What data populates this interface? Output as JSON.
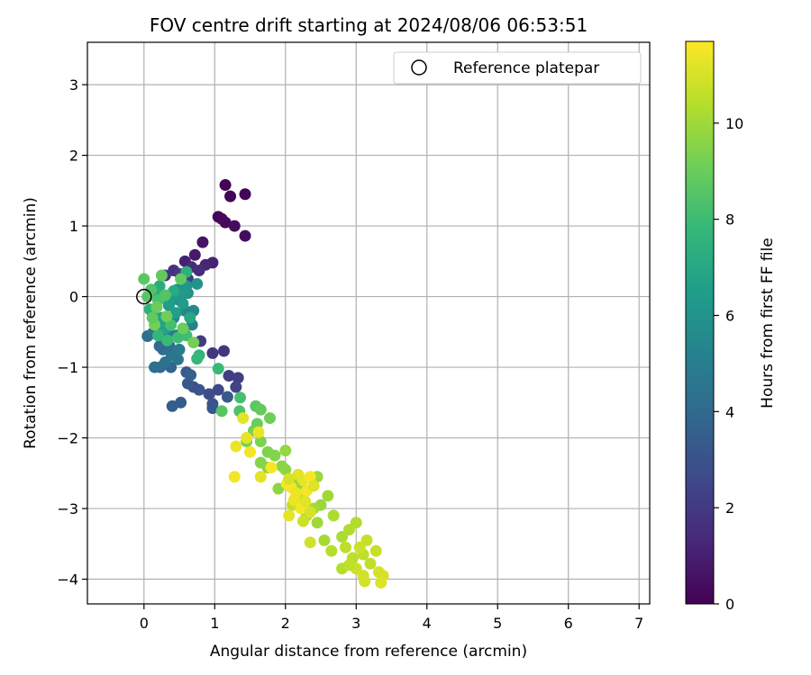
{
  "chart_data": {
    "type": "scatter",
    "title": "FOV centre drift starting at 2024/08/06 06:53:51",
    "xlabel": "Angular distance from reference (arcmin)",
    "ylabel": "Rotation from reference (arcmin)",
    "xlim": [
      -0.8,
      7.15
    ],
    "ylim": [
      -4.35,
      3.6
    ],
    "xticks": [
      0,
      1,
      2,
      3,
      4,
      5,
      6,
      7
    ],
    "yticks": [
      -4,
      -3,
      -2,
      -1,
      0,
      1,
      2,
      3
    ],
    "grid": true,
    "legend": {
      "entries": [
        "Reference platepar"
      ],
      "placement": "top-right",
      "marker": "hollow-circle"
    },
    "reference_point": {
      "x": 0,
      "y": 0
    },
    "colorbar": {
      "label": "Hours from first FF file",
      "range": [
        0,
        11.7
      ],
      "ticks": [
        0,
        2,
        4,
        6,
        8,
        10
      ],
      "colormap": "viridis",
      "colormap_stops": [
        "#440154",
        "#482878",
        "#3e4989",
        "#31688e",
        "#26828e",
        "#1f9e89",
        "#35b779",
        "#6ece58",
        "#b5de2b",
        "#fde725"
      ]
    },
    "points": [
      {
        "x": 1.15,
        "y": 1.58,
        "c": 0.05
      },
      {
        "x": 1.43,
        "y": 1.45,
        "c": 0.1
      },
      {
        "x": 1.22,
        "y": 1.42,
        "c": 0.15
      },
      {
        "x": 1.05,
        "y": 1.13,
        "c": 0.2
      },
      {
        "x": 1.1,
        "y": 1.1,
        "c": 0.25
      },
      {
        "x": 1.15,
        "y": 1.05,
        "c": 0.3
      },
      {
        "x": 1.28,
        "y": 1.0,
        "c": 0.35
      },
      {
        "x": 1.43,
        "y": 0.86,
        "c": 0.4
      },
      {
        "x": 0.83,
        "y": 0.77,
        "c": 0.6
      },
      {
        "x": 0.72,
        "y": 0.59,
        "c": 0.8
      },
      {
        "x": 0.58,
        "y": 0.5,
        "c": 1.0
      },
      {
        "x": 0.97,
        "y": 0.48,
        "c": 1.1
      },
      {
        "x": 0.87,
        "y": 0.45,
        "c": 1.2
      },
      {
        "x": 0.67,
        "y": 0.42,
        "c": 1.4
      },
      {
        "x": 0.78,
        "y": 0.37,
        "c": 1.5
      },
      {
        "x": 0.42,
        "y": 0.37,
        "c": 1.7
      },
      {
        "x": 0.3,
        "y": 0.3,
        "c": 1.9
      },
      {
        "x": 0.51,
        "y": 0.32,
        "c": 2.0
      },
      {
        "x": 0.62,
        "y": 0.25,
        "c": 2.2
      },
      {
        "x": 0.8,
        "y": -0.63,
        "c": 2.1
      },
      {
        "x": 0.97,
        "y": -0.8,
        "c": 1.9
      },
      {
        "x": 1.13,
        "y": -0.77,
        "c": 1.8
      },
      {
        "x": 1.2,
        "y": -1.12,
        "c": 2.1
      },
      {
        "x": 1.33,
        "y": -1.15,
        "c": 2.2
      },
      {
        "x": 1.3,
        "y": -1.28,
        "c": 2.4
      },
      {
        "x": 1.05,
        "y": -1.32,
        "c": 2.6
      },
      {
        "x": 0.92,
        "y": -1.38,
        "c": 2.8
      },
      {
        "x": 0.97,
        "y": -1.52,
        "c": 3.0
      },
      {
        "x": 0.97,
        "y": -1.58,
        "c": 3.2
      },
      {
        "x": 0.52,
        "y": -1.5,
        "c": 3.4
      },
      {
        "x": 0.4,
        "y": -1.55,
        "c": 3.5
      },
      {
        "x": 1.18,
        "y": -1.42,
        "c": 3.3
      },
      {
        "x": 0.78,
        "y": -1.32,
        "c": 3.1
      },
      {
        "x": 0.7,
        "y": -1.28,
        "c": 3.0
      },
      {
        "x": 0.62,
        "y": -1.23,
        "c": 3.2
      },
      {
        "x": 0.6,
        "y": -1.07,
        "c": 3.4
      },
      {
        "x": 0.66,
        "y": -1.11,
        "c": 3.6
      },
      {
        "x": 0.38,
        "y": -1.0,
        "c": 3.8
      },
      {
        "x": 0.23,
        "y": -1.0,
        "c": 4.0
      },
      {
        "x": 0.15,
        "y": -1.0,
        "c": 4.2
      },
      {
        "x": 0.3,
        "y": -0.93,
        "c": 4.4
      },
      {
        "x": 0.48,
        "y": -0.89,
        "c": 4.6
      },
      {
        "x": 0.39,
        "y": -0.83,
        "c": 4.5
      },
      {
        "x": 0.27,
        "y": -0.75,
        "c": 4.3
      },
      {
        "x": 0.22,
        "y": -0.7,
        "c": 4.0
      },
      {
        "x": 0.36,
        "y": -0.7,
        "c": 4.2
      },
      {
        "x": 0.5,
        "y": -0.75,
        "c": 4.8
      },
      {
        "x": 0.05,
        "y": -0.56,
        "c": 4.1
      },
      {
        "x": 0.12,
        "y": -0.52,
        "c": 4.4
      },
      {
        "x": 0.19,
        "y": -0.47,
        "c": 4.6
      },
      {
        "x": 0.32,
        "y": -0.48,
        "c": 4.7
      },
      {
        "x": 0.45,
        "y": -0.55,
        "c": 4.9
      },
      {
        "x": 0.55,
        "y": -0.48,
        "c": 5.0
      },
      {
        "x": 0.68,
        "y": -0.4,
        "c": 5.1
      },
      {
        "x": 0.25,
        "y": -0.35,
        "c": 5.2
      },
      {
        "x": 0.42,
        "y": -0.3,
        "c": 5.3
      },
      {
        "x": 0.58,
        "y": -0.2,
        "c": 5.4
      },
      {
        "x": 0.7,
        "y": -0.2,
        "c": 5.5
      },
      {
        "x": 0.35,
        "y": -0.12,
        "c": 5.6
      },
      {
        "x": 0.5,
        "y": -0.05,
        "c": 5.7
      },
      {
        "x": 0.62,
        "y": 0.05,
        "c": 5.8
      },
      {
        "x": 0.47,
        "y": 0.1,
        "c": 5.9
      },
      {
        "x": 0.75,
        "y": 0.18,
        "c": 6.0
      },
      {
        "x": 0.6,
        "y": 0.15,
        "c": 6.1
      },
      {
        "x": 0.58,
        "y": 0.05,
        "c": 6.2
      },
      {
        "x": 0.44,
        "y": 0.03,
        "c": 6.3
      },
      {
        "x": 0.55,
        "y": -0.1,
        "c": 6.4
      },
      {
        "x": 0.36,
        "y": -0.1,
        "c": 6.5
      },
      {
        "x": 0.45,
        "y": -0.23,
        "c": 6.6
      },
      {
        "x": 0.12,
        "y": -0.23,
        "c": 6.6
      },
      {
        "x": 0.25,
        "y": -0.3,
        "c": 6.7
      },
      {
        "x": 0.3,
        "y": -0.45,
        "c": 6.8
      },
      {
        "x": 0.65,
        "y": -0.3,
        "c": 7.0
      },
      {
        "x": 0.42,
        "y": 0.08,
        "c": 7.1
      },
      {
        "x": 0.22,
        "y": 0.15,
        "c": 7.2
      },
      {
        "x": 0.15,
        "y": 0.05,
        "c": 7.3
      },
      {
        "x": 0.6,
        "y": 0.35,
        "c": 7.4
      },
      {
        "x": 0.08,
        "y": -0.18,
        "c": 7.5
      },
      {
        "x": 0.78,
        "y": -0.83,
        "c": 7.6
      },
      {
        "x": 0.75,
        "y": -0.88,
        "c": 7.8
      },
      {
        "x": 0.2,
        "y": -0.55,
        "c": 7.7
      },
      {
        "x": 0.33,
        "y": -0.62,
        "c": 7.9
      },
      {
        "x": 0.48,
        "y": -0.58,
        "c": 8.0
      },
      {
        "x": 0.6,
        "y": -0.55,
        "c": 8.1
      },
      {
        "x": 0.38,
        "y": -0.4,
        "c": 8.2
      },
      {
        "x": 0.2,
        "y": -0.05,
        "c": 8.3
      },
      {
        "x": 0.1,
        "y": 0.1,
        "c": 8.4
      },
      {
        "x": 0.3,
        "y": 0.02,
        "c": 8.5
      },
      {
        "x": 0.05,
        "y": 0.0,
        "c": 8.6
      },
      {
        "x": 0.0,
        "y": 0.25,
        "c": 8.7
      },
      {
        "x": 0.52,
        "y": 0.25,
        "c": 8.8
      },
      {
        "x": 0.25,
        "y": 0.3,
        "c": 8.9
      },
      {
        "x": 0.55,
        "y": -0.45,
        "c": 9.0
      },
      {
        "x": 0.32,
        "y": -0.28,
        "c": 9.1
      },
      {
        "x": 0.15,
        "y": -0.4,
        "c": 9.2
      },
      {
        "x": 0.7,
        "y": -0.65,
        "c": 9.2
      },
      {
        "x": 0.18,
        "y": -0.15,
        "c": 9.0
      },
      {
        "x": 0.12,
        "y": -0.3,
        "c": 8.8
      },
      {
        "x": 1.05,
        "y": -1.02,
        "c": 7.9
      },
      {
        "x": 1.36,
        "y": -1.43,
        "c": 8.2
      },
      {
        "x": 1.35,
        "y": -1.62,
        "c": 8.4
      },
      {
        "x": 1.1,
        "y": -1.62,
        "c": 8.6
      },
      {
        "x": 1.58,
        "y": -1.55,
        "c": 8.7
      },
      {
        "x": 1.65,
        "y": -1.6,
        "c": 8.9
      },
      {
        "x": 1.6,
        "y": -1.8,
        "c": 9.0
      },
      {
        "x": 1.78,
        "y": -1.72,
        "c": 9.1
      },
      {
        "x": 1.55,
        "y": -1.9,
        "c": 9.2
      },
      {
        "x": 1.45,
        "y": -2.05,
        "c": 9.3
      },
      {
        "x": 1.65,
        "y": -2.05,
        "c": 9.4
      },
      {
        "x": 1.75,
        "y": -2.2,
        "c": 9.4
      },
      {
        "x": 1.85,
        "y": -2.25,
        "c": 9.5
      },
      {
        "x": 1.65,
        "y": -2.35,
        "c": 9.5
      },
      {
        "x": 1.75,
        "y": -2.42,
        "c": 9.6
      },
      {
        "x": 1.95,
        "y": -2.4,
        "c": 9.6
      },
      {
        "x": 2.0,
        "y": -2.45,
        "c": 9.7
      },
      {
        "x": 1.9,
        "y": -2.72,
        "c": 9.7
      },
      {
        "x": 2.1,
        "y": -2.6,
        "c": 9.8
      },
      {
        "x": 2.2,
        "y": -2.7,
        "c": 9.8
      },
      {
        "x": 2.45,
        "y": -2.55,
        "c": 9.9
      },
      {
        "x": 2.5,
        "y": -2.95,
        "c": 9.9
      },
      {
        "x": 2.6,
        "y": -2.82,
        "c": 10.0
      },
      {
        "x": 2.45,
        "y": -3.2,
        "c": 10.0
      },
      {
        "x": 2.55,
        "y": -3.45,
        "c": 10.1
      },
      {
        "x": 2.68,
        "y": -3.1,
        "c": 10.2
      },
      {
        "x": 2.8,
        "y": -3.4,
        "c": 10.2
      },
      {
        "x": 2.9,
        "y": -3.3,
        "c": 10.3
      },
      {
        "x": 3.0,
        "y": -3.2,
        "c": 10.3
      },
      {
        "x": 2.65,
        "y": -3.6,
        "c": 10.4
      },
      {
        "x": 2.85,
        "y": -3.55,
        "c": 10.5
      },
      {
        "x": 2.95,
        "y": -3.7,
        "c": 10.5
      },
      {
        "x": 3.1,
        "y": -3.65,
        "c": 10.6
      },
      {
        "x": 3.2,
        "y": -3.78,
        "c": 10.6
      },
      {
        "x": 3.28,
        "y": -3.6,
        "c": 10.7
      },
      {
        "x": 3.15,
        "y": -3.45,
        "c": 10.7
      },
      {
        "x": 3.05,
        "y": -3.55,
        "c": 10.8
      },
      {
        "x": 3.0,
        "y": -3.85,
        "c": 10.8
      },
      {
        "x": 3.1,
        "y": -3.95,
        "c": 10.9
      },
      {
        "x": 3.12,
        "y": -4.03,
        "c": 10.9
      },
      {
        "x": 3.32,
        "y": -3.9,
        "c": 11.0
      },
      {
        "x": 3.38,
        "y": -3.95,
        "c": 11.0
      },
      {
        "x": 3.35,
        "y": -4.05,
        "c": 11.1
      },
      {
        "x": 2.8,
        "y": -3.85,
        "c": 10.4
      },
      {
        "x": 2.9,
        "y": -3.8,
        "c": 10.6
      },
      {
        "x": 2.4,
        "y": -3.0,
        "c": 10.1
      },
      {
        "x": 2.3,
        "y": -3.1,
        "c": 10.3
      },
      {
        "x": 2.2,
        "y": -2.85,
        "c": 10.4
      },
      {
        "x": 2.1,
        "y": -2.95,
        "c": 10.6
      },
      {
        "x": 2.25,
        "y": -3.18,
        "c": 10.8
      },
      {
        "x": 2.35,
        "y": -3.48,
        "c": 10.9
      },
      {
        "x": 2.0,
        "y": -2.18,
        "c": 9.8
      },
      {
        "x": 2.05,
        "y": -3.1,
        "c": 11.3
      },
      {
        "x": 1.28,
        "y": -2.55,
        "c": 11.5
      },
      {
        "x": 1.3,
        "y": -2.12,
        "c": 11.4
      },
      {
        "x": 1.4,
        "y": -1.72,
        "c": 11.2
      },
      {
        "x": 1.45,
        "y": -2.0,
        "c": 11.3
      },
      {
        "x": 1.5,
        "y": -2.2,
        "c": 11.5
      },
      {
        "x": 1.62,
        "y": -1.92,
        "c": 11.4
      },
      {
        "x": 1.65,
        "y": -2.55,
        "c": 11.2
      },
      {
        "x": 1.8,
        "y": -2.42,
        "c": 11.6
      },
      {
        "x": 2.02,
        "y": -2.65,
        "c": 11.5
      },
      {
        "x": 2.08,
        "y": -2.7,
        "c": 11.6
      },
      {
        "x": 2.15,
        "y": -2.78,
        "c": 11.4
      },
      {
        "x": 2.25,
        "y": -2.6,
        "c": 11.3
      },
      {
        "x": 2.35,
        "y": -2.55,
        "c": 11.6
      },
      {
        "x": 2.18,
        "y": -2.52,
        "c": 11.2
      },
      {
        "x": 2.12,
        "y": -2.88,
        "c": 11.4
      },
      {
        "x": 2.3,
        "y": -2.75,
        "c": 11.5
      },
      {
        "x": 2.22,
        "y": -3.0,
        "c": 11.6
      },
      {
        "x": 2.4,
        "y": -2.68,
        "c": 11.1
      },
      {
        "x": 2.05,
        "y": -2.58,
        "c": 11.0
      },
      {
        "x": 2.28,
        "y": -2.9,
        "c": 11.2
      },
      {
        "x": 2.35,
        "y": -3.05,
        "c": 11.0
      }
    ]
  }
}
